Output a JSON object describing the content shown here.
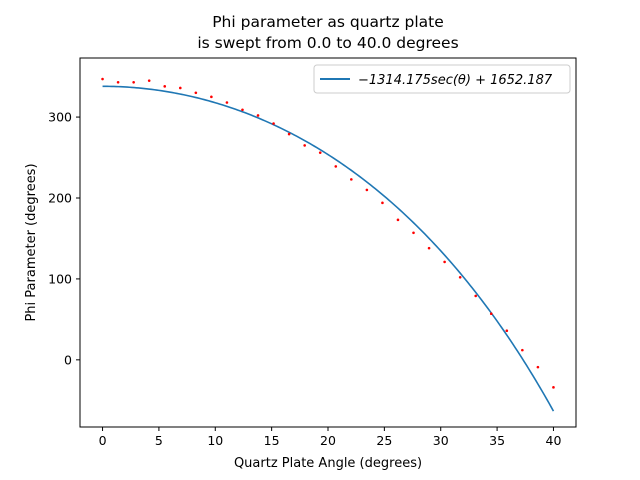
{
  "chart_data": {
    "type": "scatter",
    "title_line1": "Phi parameter as quartz plate",
    "title_line2": "is swept from 0.0 to 40.0 degrees",
    "xlabel": "Quartz Plate Angle (degrees)",
    "ylabel": "Phi Parameter (degrees)",
    "xlim": [
      -2,
      42
    ],
    "ylim": [
      -83,
      373
    ],
    "xticks": [
      0,
      5,
      10,
      15,
      20,
      25,
      30,
      35,
      40
    ],
    "yticks": [
      0,
      100,
      200,
      300
    ],
    "legend_position": "top-right",
    "legend_label": "−1314.175sec(θ) + 1652.187",
    "fit": {
      "a": -1314.175,
      "b": 1652.187,
      "form": "a*sec(theta)+b",
      "color": "#1f77b4"
    },
    "series": [
      {
        "color": "#ff0000",
        "x": [
          0.0,
          1.379,
          2.759,
          4.138,
          5.517,
          6.897,
          8.276,
          9.655,
          11.034,
          12.414,
          13.793,
          15.172,
          16.552,
          17.931,
          19.31,
          20.69,
          22.069,
          23.448,
          24.828,
          26.207,
          27.586,
          28.966,
          30.345,
          31.724,
          33.103,
          34.483,
          35.862,
          37.241,
          38.621,
          40.0
        ],
        "y": [
          347,
          343,
          343,
          345,
          338,
          336,
          330,
          325,
          318,
          309,
          302,
          292,
          279,
          265,
          256,
          239,
          223,
          210,
          194,
          173,
          157,
          138,
          121,
          102,
          79,
          57,
          36,
          12,
          -9,
          -34
        ]
      }
    ]
  }
}
